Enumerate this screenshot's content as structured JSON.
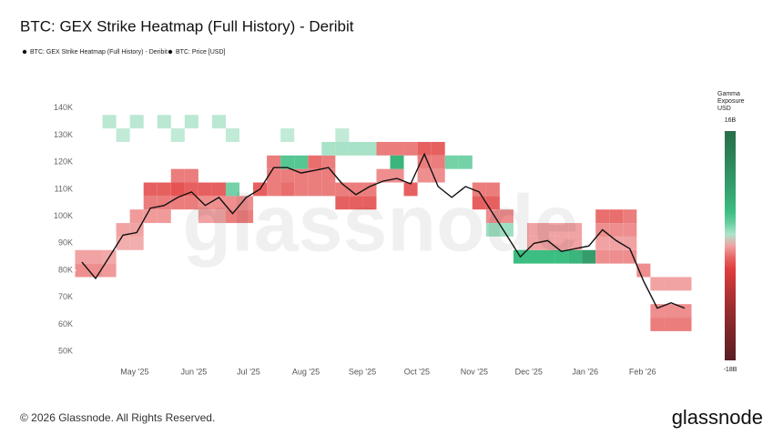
{
  "chart_data": {
    "type": "heatmap",
    "title": "BTC: GEX Strike Heatmap (Full History) - Deribit",
    "legend": [
      "BTC: GEX Strike Heatmap (Full History) - Deribit",
      "BTC: Price [USD]"
    ],
    "watermark": "glassnode",
    "xlim": [
      0,
      44
    ],
    "xticks": [
      {
        "value": 3.85,
        "label": "May '25"
      },
      {
        "value": 8.17,
        "label": "Jun '25"
      },
      {
        "value": 12.16,
        "label": "Jul '25"
      },
      {
        "value": 16.35,
        "label": "Aug '25"
      },
      {
        "value": 20.47,
        "label": "Sep '25"
      },
      {
        "value": 24.45,
        "label": "Oct '25"
      },
      {
        "value": 28.64,
        "label": "Nov '25"
      },
      {
        "value": 32.62,
        "label": "Dec '25"
      },
      {
        "value": 36.74,
        "label": "Jan '26"
      },
      {
        "value": 40.93,
        "label": "Feb '26"
      }
    ],
    "ylim": [
      45000,
      145000
    ],
    "yticks": [
      {
        "value": 50000,
        "label": "50K"
      },
      {
        "value": 60000,
        "label": "60K"
      },
      {
        "value": 70000,
        "label": "70K"
      },
      {
        "value": 80000,
        "label": "80K"
      },
      {
        "value": 90000,
        "label": "90K"
      },
      {
        "value": 100000,
        "label": "100K"
      },
      {
        "value": 110000,
        "label": "110K"
      },
      {
        "value": 120000,
        "label": "120K"
      },
      {
        "value": 130000,
        "label": "130K"
      },
      {
        "value": 140000,
        "label": "140K"
      }
    ],
    "colorbar_label": [
      "Gamma",
      "Exposure",
      "USD"
    ],
    "clim": [
      -18000000000,
      16000000000
    ],
    "cticks": [
      {
        "value": 16000000000,
        "label": "16B"
      },
      {
        "value": -18000000000,
        "label": "-18B"
      }
    ],
    "cells": [
      [
        0,
        80000,
        -1500000000
      ],
      [
        1,
        80000,
        -1500000000
      ],
      [
        2,
        80000,
        -1200000000
      ],
      [
        0,
        85000,
        -1000000000
      ],
      [
        1,
        85000,
        -1000000000
      ],
      [
        2,
        85000,
        -900000000
      ],
      [
        3,
        95000,
        -1000000000
      ],
      [
        4,
        95000,
        -1000000000
      ],
      [
        3,
        90000,
        -800000000
      ],
      [
        4,
        90000,
        -800000000
      ],
      [
        4,
        100000,
        -1200000000
      ],
      [
        5,
        100000,
        -1200000000
      ],
      [
        6,
        100000,
        -1200000000
      ],
      [
        5,
        110000,
        -3000000000
      ],
      [
        6,
        110000,
        -3000000000
      ],
      [
        7,
        110000,
        -3500000000
      ],
      [
        8,
        110000,
        -3000000000
      ],
      [
        5,
        105000,
        -2000000000
      ],
      [
        6,
        105000,
        -2000000000
      ],
      [
        7,
        105000,
        -2000000000
      ],
      [
        8,
        105000,
        -2000000000
      ],
      [
        7,
        115000,
        -2000000000
      ],
      [
        8,
        115000,
        -2000000000
      ],
      [
        9,
        110000,
        -3000000000
      ],
      [
        10,
        110000,
        -3000000000
      ],
      [
        9,
        105000,
        -1500000000
      ],
      [
        10,
        105000,
        -1500000000
      ],
      [
        9,
        100000,
        -1000000000
      ],
      [
        10,
        100000,
        -1000000000
      ],
      [
        11,
        100000,
        -2000000000
      ],
      [
        12,
        100000,
        -2000000000
      ],
      [
        11,
        105000,
        -1500000000
      ],
      [
        12,
        105000,
        -1500000000
      ],
      [
        11,
        110000,
        2000000000
      ],
      [
        13,
        110000,
        -3000000000
      ],
      [
        14,
        110000,
        -2000000000
      ],
      [
        15,
        110000,
        -2500000000
      ],
      [
        16,
        110000,
        -2000000000
      ],
      [
        17,
        110000,
        -2000000000
      ],
      [
        18,
        110000,
        -2000000000
      ],
      [
        14,
        115000,
        -2000000000
      ],
      [
        15,
        115000,
        -2000000000
      ],
      [
        16,
        115000,
        -2000000000
      ],
      [
        17,
        115000,
        -2000000000
      ],
      [
        18,
        115000,
        -2000000000
      ],
      [
        14,
        120000,
        -2000000000
      ],
      [
        15,
        120000,
        3000000000
      ],
      [
        16,
        120000,
        3000000000
      ],
      [
        17,
        120000,
        -2500000000
      ],
      [
        18,
        120000,
        -2000000000
      ],
      [
        19,
        105000,
        -3000000000
      ],
      [
        20,
        105000,
        -3000000000
      ],
      [
        21,
        105000,
        -3000000000
      ],
      [
        19,
        110000,
        -2000000000
      ],
      [
        20,
        110000,
        -2000000000
      ],
      [
        21,
        110000,
        -2000000000
      ],
      [
        22,
        125000,
        -2000000000
      ],
      [
        23,
        125000,
        -2000000000
      ],
      [
        24,
        125000,
        -2000000000
      ],
      [
        22,
        115000,
        -1500000000
      ],
      [
        23,
        115000,
        -1500000000
      ],
      [
        23,
        120000,
        5000000000
      ],
      [
        24,
        110000,
        -3000000000
      ],
      [
        25,
        125000,
        -3000000000
      ],
      [
        26,
        125000,
        -3000000000
      ],
      [
        25,
        120000,
        -2000000000
      ],
      [
        26,
        120000,
        -2000000000
      ],
      [
        25,
        115000,
        -1500000000
      ],
      [
        26,
        115000,
        -1500000000
      ],
      [
        27,
        120000,
        2000000000
      ],
      [
        28,
        120000,
        2000000000
      ],
      [
        29,
        105000,
        -3000000000
      ],
      [
        30,
        105000,
        -3000000000
      ],
      [
        29,
        110000,
        -2000000000
      ],
      [
        30,
        110000,
        -2000000000
      ],
      [
        30,
        100000,
        -1500000000
      ],
      [
        31,
        100000,
        -1500000000
      ],
      [
        30,
        95000,
        1000000000
      ],
      [
        31,
        95000,
        1000000000
      ],
      [
        32,
        85000,
        4000000000
      ],
      [
        33,
        85000,
        4000000000
      ],
      [
        34,
        85000,
        4000000000
      ],
      [
        35,
        85000,
        4000000000
      ],
      [
        36,
        85000,
        5000000000
      ],
      [
        37,
        85000,
        8000000000
      ],
      [
        33,
        95000,
        -1000000000
      ],
      [
        34,
        95000,
        -1000000000
      ],
      [
        35,
        95000,
        -1000000000
      ],
      [
        36,
        95000,
        -1000000000
      ],
      [
        33,
        90000,
        -1000000000
      ],
      [
        34,
        90000,
        -1000000000
      ],
      [
        35,
        90000,
        -1000000000
      ],
      [
        36,
        90000,
        -1000000000
      ],
      [
        38,
        100000,
        -2500000000
      ],
      [
        39,
        100000,
        -2500000000
      ],
      [
        40,
        100000,
        -2000000000
      ],
      [
        38,
        95000,
        -1500000000
      ],
      [
        39,
        95000,
        -1500000000
      ],
      [
        40,
        95000,
        -1500000000
      ],
      [
        38,
        90000,
        -1000000000
      ],
      [
        39,
        90000,
        -1000000000
      ],
      [
        40,
        90000,
        -1000000000
      ],
      [
        38,
        85000,
        -1500000000
      ],
      [
        39,
        85000,
        -1500000000
      ],
      [
        40,
        85000,
        -1500000000
      ],
      [
        41,
        80000,
        -1500000000
      ],
      [
        42,
        75000,
        -1000000000
      ],
      [
        43,
        75000,
        -1000000000
      ],
      [
        44,
        75000,
        -1000000000
      ],
      [
        42,
        65000,
        -1500000000
      ],
      [
        43,
        65000,
        -1500000000
      ],
      [
        44,
        65000,
        -1500000000
      ],
      [
        42,
        60000,
        -2000000000
      ],
      [
        43,
        60000,
        -2000000000
      ],
      [
        44,
        60000,
        -2000000000
      ],
      [
        2,
        135000,
        500000000
      ],
      [
        4,
        135000,
        500000000
      ],
      [
        6,
        135000,
        500000000
      ],
      [
        8,
        135000,
        500000000
      ],
      [
        10,
        135000,
        500000000
      ],
      [
        3,
        130000,
        400000000
      ],
      [
        7,
        130000,
        400000000
      ],
      [
        11,
        130000,
        400000000
      ],
      [
        15,
        130000,
        400000000
      ],
      [
        19,
        130000,
        400000000
      ],
      [
        18,
        125000,
        800000000
      ],
      [
        19,
        125000,
        800000000
      ],
      [
        20,
        125000,
        800000000
      ],
      [
        21,
        125000,
        800000000
      ]
    ],
    "series": [
      {
        "name": "BTC: Price [USD]",
        "color": "#111111",
        "values": [
          83000,
          77000,
          85000,
          93000,
          94000,
          103000,
          104000,
          107000,
          109000,
          104000,
          107000,
          101000,
          107000,
          110000,
          118000,
          118000,
          116000,
          117000,
          118000,
          112000,
          108000,
          111000,
          113000,
          114000,
          112000,
          123000,
          111000,
          107000,
          111000,
          109000,
          101000,
          93000,
          85000,
          90000,
          91000,
          87000,
          88000,
          89000,
          95000,
          91000,
          88000,
          76000,
          66000,
          68000,
          66000
        ]
      }
    ]
  },
  "footer": {
    "copyright": "© 2026 Glassnode. All Rights Reserved.",
    "logo": "glassnode"
  }
}
